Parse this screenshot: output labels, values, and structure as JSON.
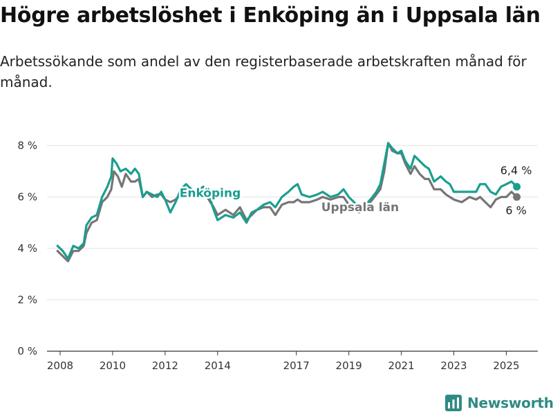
{
  "title": "Högre arbetslöshet i Enköping än i Uppsala län",
  "subtitle": "Arbetssökande som andel av den registerbaserade arbetskraften månad för månad.",
  "brand": {
    "name": "Newsworthy",
    "icon": "newsworthy-logo-icon"
  },
  "colors": {
    "enkoping": "#1a9e8f",
    "uppsala": "#757575",
    "grid": "#e3e3e3",
    "axis": "#333333"
  },
  "chart_data": {
    "type": "line",
    "xlim": [
      2007.5,
      2026.2
    ],
    "ylim": [
      0,
      8
    ],
    "x_ticks": [
      2008,
      2010,
      2012,
      2014,
      2017,
      2019,
      2021,
      2023,
      2025
    ],
    "x_tick_labels": [
      "2008",
      "2010",
      "2012",
      "2014",
      "2017",
      "2019",
      "2021",
      "2023",
      "2025"
    ],
    "y_ticks": [
      0,
      2,
      4,
      6,
      8
    ],
    "y_tick_labels": [
      "0 %",
      "2 %",
      "4 %",
      "6 %",
      "8 %"
    ],
    "grid": true,
    "series": [
      {
        "name": "Enköping",
        "end_label": "6,4 %",
        "points": [
          [
            2007.9,
            4.1
          ],
          [
            2008.1,
            3.9
          ],
          [
            2008.3,
            3.6
          ],
          [
            2008.5,
            4.1
          ],
          [
            2008.7,
            4.0
          ],
          [
            2008.9,
            4.2
          ],
          [
            2009.0,
            4.9
          ],
          [
            2009.2,
            5.2
          ],
          [
            2009.4,
            5.3
          ],
          [
            2009.6,
            6.0
          ],
          [
            2009.8,
            6.4
          ],
          [
            2009.95,
            6.8
          ],
          [
            2010.0,
            7.5
          ],
          [
            2010.15,
            7.3
          ],
          [
            2010.3,
            7.0
          ],
          [
            2010.5,
            7.1
          ],
          [
            2010.7,
            6.9
          ],
          [
            2010.85,
            7.1
          ],
          [
            2011.0,
            6.9
          ],
          [
            2011.15,
            6.0
          ],
          [
            2011.3,
            6.2
          ],
          [
            2011.5,
            6.1
          ],
          [
            2011.7,
            6.0
          ],
          [
            2011.85,
            6.2
          ],
          [
            2012.0,
            5.9
          ],
          [
            2012.2,
            5.4
          ],
          [
            2012.4,
            5.8
          ],
          [
            2012.6,
            6.3
          ],
          [
            2012.8,
            6.5
          ],
          [
            2013.0,
            6.3
          ],
          [
            2013.2,
            6.2
          ],
          [
            2013.45,
            6.4
          ],
          [
            2013.6,
            6.3
          ],
          [
            2013.85,
            5.5
          ],
          [
            2014.0,
            5.1
          ],
          [
            2014.3,
            5.3
          ],
          [
            2014.6,
            5.2
          ],
          [
            2014.85,
            5.4
          ],
          [
            2015.1,
            5.0
          ],
          [
            2015.3,
            5.4
          ],
          [
            2015.5,
            5.5
          ],
          [
            2015.75,
            5.7
          ],
          [
            2016.0,
            5.8
          ],
          [
            2016.2,
            5.6
          ],
          [
            2016.45,
            6.0
          ],
          [
            2016.7,
            6.2
          ],
          [
            2016.9,
            6.4
          ],
          [
            2017.05,
            6.5
          ],
          [
            2017.2,
            6.1
          ],
          [
            2017.5,
            6.0
          ],
          [
            2017.8,
            6.1
          ],
          [
            2018.0,
            6.2
          ],
          [
            2018.3,
            6.0
          ],
          [
            2018.6,
            6.1
          ],
          [
            2018.8,
            6.3
          ],
          [
            2019.0,
            6.0
          ],
          [
            2019.2,
            5.8
          ],
          [
            2019.4,
            5.6
          ],
          [
            2019.65,
            5.7
          ],
          [
            2019.9,
            6.0
          ],
          [
            2020.05,
            6.2
          ],
          [
            2020.2,
            6.5
          ],
          [
            2020.35,
            7.3
          ],
          [
            2020.5,
            8.1
          ],
          [
            2020.65,
            7.9
          ],
          [
            2020.85,
            7.7
          ],
          [
            2021.0,
            7.8
          ],
          [
            2021.15,
            7.4
          ],
          [
            2021.35,
            7.1
          ],
          [
            2021.5,
            7.6
          ],
          [
            2021.7,
            7.4
          ],
          [
            2021.9,
            7.2
          ],
          [
            2022.05,
            7.1
          ],
          [
            2022.25,
            6.6
          ],
          [
            2022.5,
            6.8
          ],
          [
            2022.7,
            6.6
          ],
          [
            2022.85,
            6.5
          ],
          [
            2023.0,
            6.2
          ],
          [
            2023.3,
            6.2
          ],
          [
            2023.6,
            6.2
          ],
          [
            2023.85,
            6.2
          ],
          [
            2024.0,
            6.5
          ],
          [
            2024.2,
            6.5
          ],
          [
            2024.4,
            6.2
          ],
          [
            2024.6,
            6.1
          ],
          [
            2024.8,
            6.4
          ],
          [
            2025.0,
            6.5
          ],
          [
            2025.2,
            6.6
          ],
          [
            2025.4,
            6.4
          ]
        ]
      },
      {
        "name": "Uppsala län",
        "end_label": "6 %",
        "points": [
          [
            2007.9,
            3.9
          ],
          [
            2008.1,
            3.7
          ],
          [
            2008.3,
            3.5
          ],
          [
            2008.5,
            3.9
          ],
          [
            2008.7,
            3.9
          ],
          [
            2008.9,
            4.1
          ],
          [
            2009.0,
            4.6
          ],
          [
            2009.2,
            5.0
          ],
          [
            2009.4,
            5.1
          ],
          [
            2009.6,
            5.8
          ],
          [
            2009.8,
            6.0
          ],
          [
            2009.95,
            6.3
          ],
          [
            2010.05,
            7.0
          ],
          [
            2010.2,
            6.8
          ],
          [
            2010.35,
            6.4
          ],
          [
            2010.5,
            6.9
          ],
          [
            2010.7,
            6.6
          ],
          [
            2010.85,
            6.6
          ],
          [
            2011.0,
            6.7
          ],
          [
            2011.15,
            6.0
          ],
          [
            2011.3,
            6.2
          ],
          [
            2011.5,
            6.0
          ],
          [
            2011.7,
            6.1
          ],
          [
            2011.85,
            6.1
          ],
          [
            2012.0,
            5.9
          ],
          [
            2012.2,
            5.8
          ],
          [
            2012.4,
            5.9
          ],
          [
            2012.6,
            6.1
          ],
          [
            2012.8,
            6.2
          ],
          [
            2013.0,
            6.1
          ],
          [
            2013.2,
            6.2
          ],
          [
            2013.45,
            6.2
          ],
          [
            2013.6,
            6.0
          ],
          [
            2013.85,
            5.6
          ],
          [
            2014.0,
            5.3
          ],
          [
            2014.3,
            5.5
          ],
          [
            2014.6,
            5.3
          ],
          [
            2014.85,
            5.6
          ],
          [
            2015.1,
            5.1
          ],
          [
            2015.3,
            5.3
          ],
          [
            2015.5,
            5.5
          ],
          [
            2015.75,
            5.6
          ],
          [
            2016.0,
            5.6
          ],
          [
            2016.2,
            5.3
          ],
          [
            2016.45,
            5.7
          ],
          [
            2016.7,
            5.8
          ],
          [
            2016.9,
            5.8
          ],
          [
            2017.05,
            5.9
          ],
          [
            2017.2,
            5.8
          ],
          [
            2017.5,
            5.8
          ],
          [
            2017.8,
            5.9
          ],
          [
            2018.0,
            6.0
          ],
          [
            2018.3,
            5.9
          ],
          [
            2018.6,
            6.0
          ],
          [
            2018.8,
            6.0
          ],
          [
            2019.0,
            5.7
          ],
          [
            2019.2,
            5.5
          ],
          [
            2019.4,
            5.4
          ],
          [
            2019.65,
            5.6
          ],
          [
            2019.9,
            5.9
          ],
          [
            2020.05,
            6.1
          ],
          [
            2020.2,
            6.3
          ],
          [
            2020.35,
            7.0
          ],
          [
            2020.5,
            8.1
          ],
          [
            2020.65,
            7.8
          ],
          [
            2020.85,
            7.7
          ],
          [
            2021.0,
            7.7
          ],
          [
            2021.15,
            7.3
          ],
          [
            2021.35,
            6.9
          ],
          [
            2021.5,
            7.2
          ],
          [
            2021.7,
            6.9
          ],
          [
            2021.9,
            6.7
          ],
          [
            2022.05,
            6.7
          ],
          [
            2022.25,
            6.3
          ],
          [
            2022.5,
            6.3
          ],
          [
            2022.7,
            6.1
          ],
          [
            2022.85,
            6.0
          ],
          [
            2023.0,
            5.9
          ],
          [
            2023.3,
            5.8
          ],
          [
            2023.6,
            6.0
          ],
          [
            2023.85,
            5.9
          ],
          [
            2024.0,
            6.0
          ],
          [
            2024.2,
            5.8
          ],
          [
            2024.4,
            5.6
          ],
          [
            2024.6,
            5.9
          ],
          [
            2024.8,
            6.0
          ],
          [
            2025.0,
            6.0
          ],
          [
            2025.2,
            6.2
          ],
          [
            2025.4,
            6.0
          ]
        ]
      }
    ]
  }
}
